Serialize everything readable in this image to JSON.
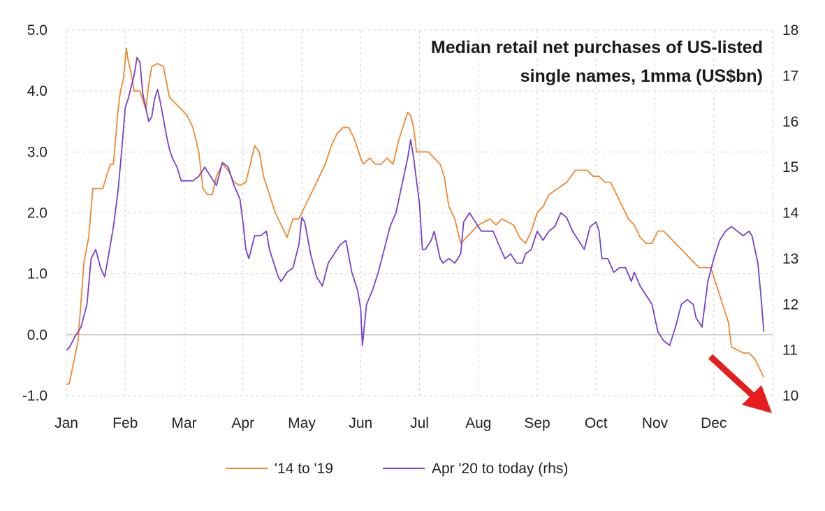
{
  "chart_data": {
    "type": "line",
    "title_lines": [
      "Median retail net purchases of US-listed",
      "single names, 1mma (US$bn)"
    ],
    "x_categories": [
      "Jan",
      "Feb",
      "Mar",
      "Apr",
      "May",
      "Jun",
      "Jul",
      "Aug",
      "Sep",
      "Oct",
      "Nov",
      "Dec"
    ],
    "x_range": [
      0,
      12
    ],
    "y_left": {
      "range": [
        -1.0,
        5.0
      ],
      "ticks": [
        "5.0",
        "4.0",
        "3.0",
        "2.0",
        "1.0",
        "0.0",
        "-1.0"
      ],
      "tick_values": [
        5,
        4,
        3,
        2,
        1,
        0,
        -1
      ]
    },
    "y_right": {
      "range": [
        10,
        18
      ],
      "ticks": [
        "18",
        "17",
        "16",
        "15",
        "14",
        "13",
        "12",
        "11",
        "10"
      ],
      "tick_values": [
        18,
        17,
        16,
        15,
        14,
        13,
        12,
        11,
        10
      ]
    },
    "grid": true,
    "legend_position": "bottom",
    "annotation": "red-arrow-down-right",
    "series": [
      {
        "name": "'14 to '19",
        "axis": "left",
        "color": "#f0882e",
        "points": [
          [
            0.0,
            -0.82
          ],
          [
            0.05,
            -0.8
          ],
          [
            0.2,
            -0.1
          ],
          [
            0.3,
            1.2
          ],
          [
            0.38,
            1.6
          ],
          [
            0.45,
            2.4
          ],
          [
            0.55,
            2.4
          ],
          [
            0.62,
            2.4
          ],
          [
            0.68,
            2.6
          ],
          [
            0.75,
            2.8
          ],
          [
            0.8,
            2.8
          ],
          [
            0.88,
            3.7
          ],
          [
            0.92,
            4.0
          ],
          [
            0.97,
            4.2
          ],
          [
            1.02,
            4.7
          ],
          [
            1.05,
            4.5
          ],
          [
            1.1,
            4.3
          ],
          [
            1.15,
            4.0
          ],
          [
            1.25,
            4.0
          ],
          [
            1.35,
            3.7
          ],
          [
            1.4,
            4.1
          ],
          [
            1.45,
            4.4
          ],
          [
            1.55,
            4.45
          ],
          [
            1.65,
            4.4
          ],
          [
            1.75,
            3.9
          ],
          [
            1.85,
            3.8
          ],
          [
            1.95,
            3.7
          ],
          [
            2.05,
            3.6
          ],
          [
            2.15,
            3.4
          ],
          [
            2.25,
            3.0
          ],
          [
            2.32,
            2.4
          ],
          [
            2.4,
            2.3
          ],
          [
            2.48,
            2.3
          ],
          [
            2.55,
            2.6
          ],
          [
            2.65,
            2.8
          ],
          [
            2.75,
            2.7
          ],
          [
            2.85,
            2.5
          ],
          [
            2.95,
            2.45
          ],
          [
            3.05,
            2.5
          ],
          [
            3.15,
            2.9
          ],
          [
            3.2,
            3.1
          ],
          [
            3.28,
            3.0
          ],
          [
            3.35,
            2.6
          ],
          [
            3.45,
            2.3
          ],
          [
            3.55,
            2.0
          ],
          [
            3.65,
            1.8
          ],
          [
            3.75,
            1.6
          ],
          [
            3.85,
            1.9
          ],
          [
            3.95,
            1.9
          ],
          [
            4.0,
            2.0
          ],
          [
            4.1,
            2.2
          ],
          [
            4.2,
            2.4
          ],
          [
            4.3,
            2.6
          ],
          [
            4.4,
            2.8
          ],
          [
            4.5,
            3.1
          ],
          [
            4.6,
            3.3
          ],
          [
            4.7,
            3.4
          ],
          [
            4.8,
            3.4
          ],
          [
            4.9,
            3.2
          ],
          [
            5.0,
            2.9
          ],
          [
            5.05,
            2.8
          ],
          [
            5.15,
            2.9
          ],
          [
            5.25,
            2.8
          ],
          [
            5.35,
            2.8
          ],
          [
            5.45,
            2.9
          ],
          [
            5.55,
            2.8
          ],
          [
            5.65,
            3.2
          ],
          [
            5.75,
            3.5
          ],
          [
            5.8,
            3.65
          ],
          [
            5.85,
            3.6
          ],
          [
            5.9,
            3.4
          ],
          [
            5.95,
            3.0
          ],
          [
            6.05,
            3.0
          ],
          [
            6.15,
            3.0
          ],
          [
            6.25,
            2.9
          ],
          [
            6.35,
            2.8
          ],
          [
            6.42,
            2.6
          ],
          [
            6.5,
            2.1
          ],
          [
            6.6,
            1.9
          ],
          [
            6.7,
            1.5
          ],
          [
            6.8,
            1.6
          ],
          [
            6.9,
            1.7
          ],
          [
            7.0,
            1.8
          ],
          [
            7.1,
            1.85
          ],
          [
            7.2,
            1.9
          ],
          [
            7.3,
            1.8
          ],
          [
            7.4,
            1.9
          ],
          [
            7.5,
            1.85
          ],
          [
            7.6,
            1.8
          ],
          [
            7.7,
            1.6
          ],
          [
            7.8,
            1.5
          ],
          [
            7.9,
            1.7
          ],
          [
            8.0,
            2.0
          ],
          [
            8.1,
            2.1
          ],
          [
            8.2,
            2.3
          ],
          [
            8.35,
            2.4
          ],
          [
            8.5,
            2.5
          ],
          [
            8.65,
            2.7
          ],
          [
            8.75,
            2.7
          ],
          [
            8.85,
            2.7
          ],
          [
            8.95,
            2.6
          ],
          [
            9.05,
            2.6
          ],
          [
            9.15,
            2.5
          ],
          [
            9.25,
            2.5
          ],
          [
            9.35,
            2.3
          ],
          [
            9.45,
            2.1
          ],
          [
            9.55,
            1.9
          ],
          [
            9.65,
            1.8
          ],
          [
            9.75,
            1.6
          ],
          [
            9.85,
            1.5
          ],
          [
            9.95,
            1.5
          ],
          [
            10.05,
            1.7
          ],
          [
            10.15,
            1.7
          ],
          [
            10.25,
            1.6
          ],
          [
            10.35,
            1.5
          ],
          [
            10.45,
            1.4
          ],
          [
            10.55,
            1.3
          ],
          [
            10.65,
            1.2
          ],
          [
            10.75,
            1.1
          ],
          [
            10.85,
            1.1
          ],
          [
            10.95,
            1.1
          ],
          [
            11.05,
            0.8
          ],
          [
            11.15,
            0.5
          ],
          [
            11.25,
            0.2
          ],
          [
            11.3,
            -0.2
          ],
          [
            11.4,
            -0.25
          ],
          [
            11.5,
            -0.3
          ],
          [
            11.6,
            -0.3
          ],
          [
            11.7,
            -0.4
          ],
          [
            11.8,
            -0.6
          ],
          [
            11.85,
            -0.7
          ]
        ]
      },
      {
        "name": "Apr '20 to today (rhs)",
        "axis": "right",
        "color": "#7a3fc9",
        "points": [
          [
            0.0,
            11.0
          ],
          [
            0.05,
            11.05
          ],
          [
            0.15,
            11.3
          ],
          [
            0.25,
            11.5
          ],
          [
            0.35,
            12.0
          ],
          [
            0.42,
            13.0
          ],
          [
            0.5,
            13.2
          ],
          [
            0.58,
            12.8
          ],
          [
            0.65,
            12.6
          ],
          [
            0.72,
            13.1
          ],
          [
            0.8,
            13.7
          ],
          [
            0.88,
            14.5
          ],
          [
            0.95,
            15.5
          ],
          [
            1.0,
            16.3
          ],
          [
            1.05,
            16.5
          ],
          [
            1.15,
            17.0
          ],
          [
            1.2,
            17.4
          ],
          [
            1.25,
            17.3
          ],
          [
            1.3,
            16.6
          ],
          [
            1.4,
            16.0
          ],
          [
            1.45,
            16.1
          ],
          [
            1.5,
            16.5
          ],
          [
            1.55,
            16.7
          ],
          [
            1.6,
            16.4
          ],
          [
            1.7,
            15.7
          ],
          [
            1.75,
            15.4
          ],
          [
            1.8,
            15.2
          ],
          [
            1.88,
            15.0
          ],
          [
            1.95,
            14.7
          ],
          [
            2.05,
            14.7
          ],
          [
            2.15,
            14.7
          ],
          [
            2.25,
            14.8
          ],
          [
            2.35,
            15.0
          ],
          [
            2.45,
            14.8
          ],
          [
            2.55,
            14.6
          ],
          [
            2.65,
            15.1
          ],
          [
            2.75,
            15.0
          ],
          [
            2.85,
            14.6
          ],
          [
            2.95,
            14.3
          ],
          [
            3.0,
            13.8
          ],
          [
            3.05,
            13.2
          ],
          [
            3.1,
            13.0
          ],
          [
            3.2,
            13.5
          ],
          [
            3.3,
            13.5
          ],
          [
            3.4,
            13.6
          ],
          [
            3.45,
            13.2
          ],
          [
            3.55,
            12.8
          ],
          [
            3.6,
            12.6
          ],
          [
            3.65,
            12.5
          ],
          [
            3.75,
            12.7
          ],
          [
            3.85,
            12.8
          ],
          [
            3.95,
            13.3
          ],
          [
            4.0,
            13.9
          ],
          [
            4.05,
            13.8
          ],
          [
            4.15,
            13.1
          ],
          [
            4.25,
            12.6
          ],
          [
            4.35,
            12.4
          ],
          [
            4.45,
            12.9
          ],
          [
            4.55,
            13.1
          ],
          [
            4.65,
            13.3
          ],
          [
            4.75,
            13.4
          ],
          [
            4.85,
            12.7
          ],
          [
            4.95,
            12.3
          ],
          [
            5.0,
            11.9
          ],
          [
            5.03,
            11.1
          ],
          [
            5.1,
            12.0
          ],
          [
            5.2,
            12.3
          ],
          [
            5.3,
            12.7
          ],
          [
            5.4,
            13.2
          ],
          [
            5.5,
            13.7
          ],
          [
            5.6,
            14.0
          ],
          [
            5.7,
            14.6
          ],
          [
            5.8,
            15.2
          ],
          [
            5.85,
            15.6
          ],
          [
            5.9,
            15.2
          ],
          [
            6.0,
            14.2
          ],
          [
            6.05,
            13.2
          ],
          [
            6.1,
            13.2
          ],
          [
            6.2,
            13.4
          ],
          [
            6.25,
            13.6
          ],
          [
            6.3,
            13.3
          ],
          [
            6.35,
            13.0
          ],
          [
            6.4,
            12.9
          ],
          [
            6.5,
            13.0
          ],
          [
            6.6,
            12.9
          ],
          [
            6.7,
            13.1
          ],
          [
            6.75,
            13.8
          ],
          [
            6.85,
            14.0
          ],
          [
            6.95,
            13.8
          ],
          [
            7.05,
            13.6
          ],
          [
            7.15,
            13.6
          ],
          [
            7.25,
            13.6
          ],
          [
            7.35,
            13.3
          ],
          [
            7.45,
            13.0
          ],
          [
            7.55,
            13.1
          ],
          [
            7.65,
            12.9
          ],
          [
            7.75,
            12.9
          ],
          [
            7.8,
            13.1
          ],
          [
            7.9,
            13.2
          ],
          [
            8.0,
            13.6
          ],
          [
            8.1,
            13.4
          ],
          [
            8.2,
            13.6
          ],
          [
            8.3,
            13.7
          ],
          [
            8.4,
            14.0
          ],
          [
            8.5,
            13.9
          ],
          [
            8.6,
            13.6
          ],
          [
            8.7,
            13.4
          ],
          [
            8.8,
            13.2
          ],
          [
            8.9,
            13.7
          ],
          [
            9.0,
            13.8
          ],
          [
            9.05,
            13.6
          ],
          [
            9.1,
            13.0
          ],
          [
            9.2,
            13.0
          ],
          [
            9.3,
            12.7
          ],
          [
            9.4,
            12.8
          ],
          [
            9.5,
            12.8
          ],
          [
            9.6,
            12.5
          ],
          [
            9.65,
            12.7
          ],
          [
            9.75,
            12.4
          ],
          [
            9.85,
            12.2
          ],
          [
            9.95,
            12.0
          ],
          [
            10.05,
            11.4
          ],
          [
            10.15,
            11.2
          ],
          [
            10.25,
            11.1
          ],
          [
            10.35,
            11.5
          ],
          [
            10.45,
            12.0
          ],
          [
            10.55,
            12.1
          ],
          [
            10.65,
            12.0
          ],
          [
            10.7,
            11.7
          ],
          [
            10.8,
            11.5
          ],
          [
            10.9,
            12.5
          ],
          [
            11.0,
            13.0
          ],
          [
            11.1,
            13.4
          ],
          [
            11.2,
            13.6
          ],
          [
            11.3,
            13.7
          ],
          [
            11.4,
            13.6
          ],
          [
            11.5,
            13.5
          ],
          [
            11.6,
            13.6
          ],
          [
            11.65,
            13.5
          ],
          [
            11.7,
            13.2
          ],
          [
            11.75,
            12.9
          ],
          [
            11.8,
            12.2
          ],
          [
            11.85,
            11.4
          ]
        ]
      }
    ]
  }
}
